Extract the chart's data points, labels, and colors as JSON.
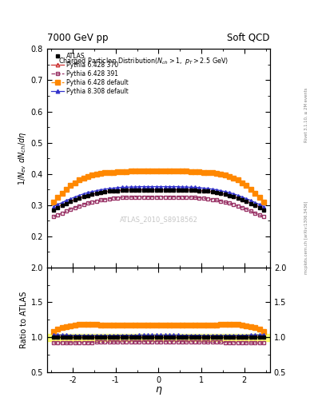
{
  "title_left": "7000 GeV pp",
  "title_right": "Soft QCD",
  "plot_title": "Charged Particleη Distribution(N_{ch} > 1, p_{T} > 2.5 GeV)",
  "ylabel_main": "1/N_{ev} dN_{ch}/dη",
  "ylabel_ratio": "Ratio to ATLAS",
  "xlabel": "η",
  "watermark": "ATLAS_2010_S8918562",
  "right_label": "mcplots.cern.ch [arXiv:1306.3436]",
  "right_label2": "Rivet 3.1.10, ≥ 2M events",
  "xlim": [
    -2.6,
    2.6
  ],
  "ylim_main": [
    0.1,
    0.8
  ],
  "ylim_ratio": [
    0.5,
    2.0
  ],
  "yticks_main": [
    0.2,
    0.3,
    0.4,
    0.5,
    0.6,
    0.7,
    0.8
  ],
  "yticks_ratio": [
    0.5,
    1.0,
    1.5,
    2.0
  ],
  "eta_values": [
    -2.45,
    -2.35,
    -2.25,
    -2.15,
    -2.05,
    -1.95,
    -1.85,
    -1.75,
    -1.65,
    -1.55,
    -1.45,
    -1.35,
    -1.25,
    -1.15,
    -1.05,
    -0.95,
    -0.85,
    -0.75,
    -0.65,
    -0.55,
    -0.45,
    -0.35,
    -0.25,
    -0.15,
    -0.05,
    0.05,
    0.15,
    0.25,
    0.35,
    0.45,
    0.55,
    0.65,
    0.75,
    0.85,
    0.95,
    1.05,
    1.15,
    1.25,
    1.35,
    1.45,
    1.55,
    1.65,
    1.75,
    1.85,
    1.95,
    2.05,
    2.15,
    2.25,
    2.35,
    2.45
  ],
  "atlas_data": [
    0.285,
    0.292,
    0.298,
    0.305,
    0.311,
    0.317,
    0.322,
    0.327,
    0.331,
    0.334,
    0.337,
    0.34,
    0.342,
    0.344,
    0.345,
    0.346,
    0.347,
    0.347,
    0.348,
    0.348,
    0.348,
    0.348,
    0.348,
    0.348,
    0.348,
    0.348,
    0.348,
    0.348,
    0.348,
    0.348,
    0.348,
    0.348,
    0.347,
    0.347,
    0.346,
    0.345,
    0.344,
    0.342,
    0.34,
    0.337,
    0.334,
    0.331,
    0.327,
    0.322,
    0.317,
    0.311,
    0.305,
    0.298,
    0.292,
    0.285
  ],
  "pythia_6428_370": [
    0.29,
    0.295,
    0.3,
    0.307,
    0.312,
    0.318,
    0.323,
    0.327,
    0.331,
    0.334,
    0.337,
    0.34,
    0.342,
    0.344,
    0.345,
    0.346,
    0.347,
    0.348,
    0.348,
    0.349,
    0.349,
    0.349,
    0.349,
    0.349,
    0.349,
    0.349,
    0.349,
    0.349,
    0.349,
    0.349,
    0.349,
    0.348,
    0.348,
    0.347,
    0.346,
    0.345,
    0.344,
    0.342,
    0.34,
    0.337,
    0.334,
    0.331,
    0.327,
    0.323,
    0.318,
    0.312,
    0.307,
    0.3,
    0.295,
    0.29
  ],
  "pythia_6428_391": [
    0.262,
    0.268,
    0.274,
    0.28,
    0.287,
    0.292,
    0.297,
    0.302,
    0.306,
    0.309,
    0.313,
    0.316,
    0.318,
    0.32,
    0.322,
    0.323,
    0.324,
    0.325,
    0.325,
    0.326,
    0.326,
    0.326,
    0.326,
    0.326,
    0.326,
    0.326,
    0.326,
    0.326,
    0.326,
    0.326,
    0.326,
    0.325,
    0.325,
    0.324,
    0.323,
    0.322,
    0.32,
    0.318,
    0.316,
    0.313,
    0.309,
    0.306,
    0.302,
    0.297,
    0.292,
    0.287,
    0.28,
    0.274,
    0.268,
    0.262
  ],
  "pythia_6428_default": [
    0.31,
    0.325,
    0.338,
    0.35,
    0.362,
    0.372,
    0.38,
    0.387,
    0.392,
    0.396,
    0.399,
    0.401,
    0.403,
    0.404,
    0.405,
    0.406,
    0.407,
    0.407,
    0.408,
    0.408,
    0.408,
    0.409,
    0.409,
    0.409,
    0.409,
    0.409,
    0.409,
    0.409,
    0.409,
    0.408,
    0.408,
    0.408,
    0.407,
    0.407,
    0.406,
    0.405,
    0.404,
    0.403,
    0.401,
    0.399,
    0.396,
    0.392,
    0.387,
    0.38,
    0.372,
    0.362,
    0.35,
    0.338,
    0.325,
    0.31
  ],
  "pythia_8308_default": [
    0.295,
    0.302,
    0.308,
    0.315,
    0.32,
    0.326,
    0.331,
    0.336,
    0.34,
    0.343,
    0.346,
    0.349,
    0.351,
    0.353,
    0.354,
    0.356,
    0.357,
    0.357,
    0.358,
    0.358,
    0.359,
    0.359,
    0.359,
    0.359,
    0.359,
    0.359,
    0.359,
    0.359,
    0.359,
    0.359,
    0.358,
    0.358,
    0.357,
    0.357,
    0.356,
    0.354,
    0.353,
    0.351,
    0.349,
    0.346,
    0.343,
    0.34,
    0.336,
    0.331,
    0.326,
    0.32,
    0.315,
    0.308,
    0.302,
    0.295
  ],
  "color_atlas": "#000000",
  "color_6428_370": "#cc3333",
  "color_6428_391": "#993366",
  "color_6428_default": "#ff8800",
  "color_8308_default": "#3333cc",
  "background_color": "#ffffff",
  "legend_entries": [
    "ATLAS",
    "Pythia 6.428 370",
    "Pythia 6.428 391",
    "Pythia 6.428 default",
    "Pythia 8.308 default"
  ]
}
